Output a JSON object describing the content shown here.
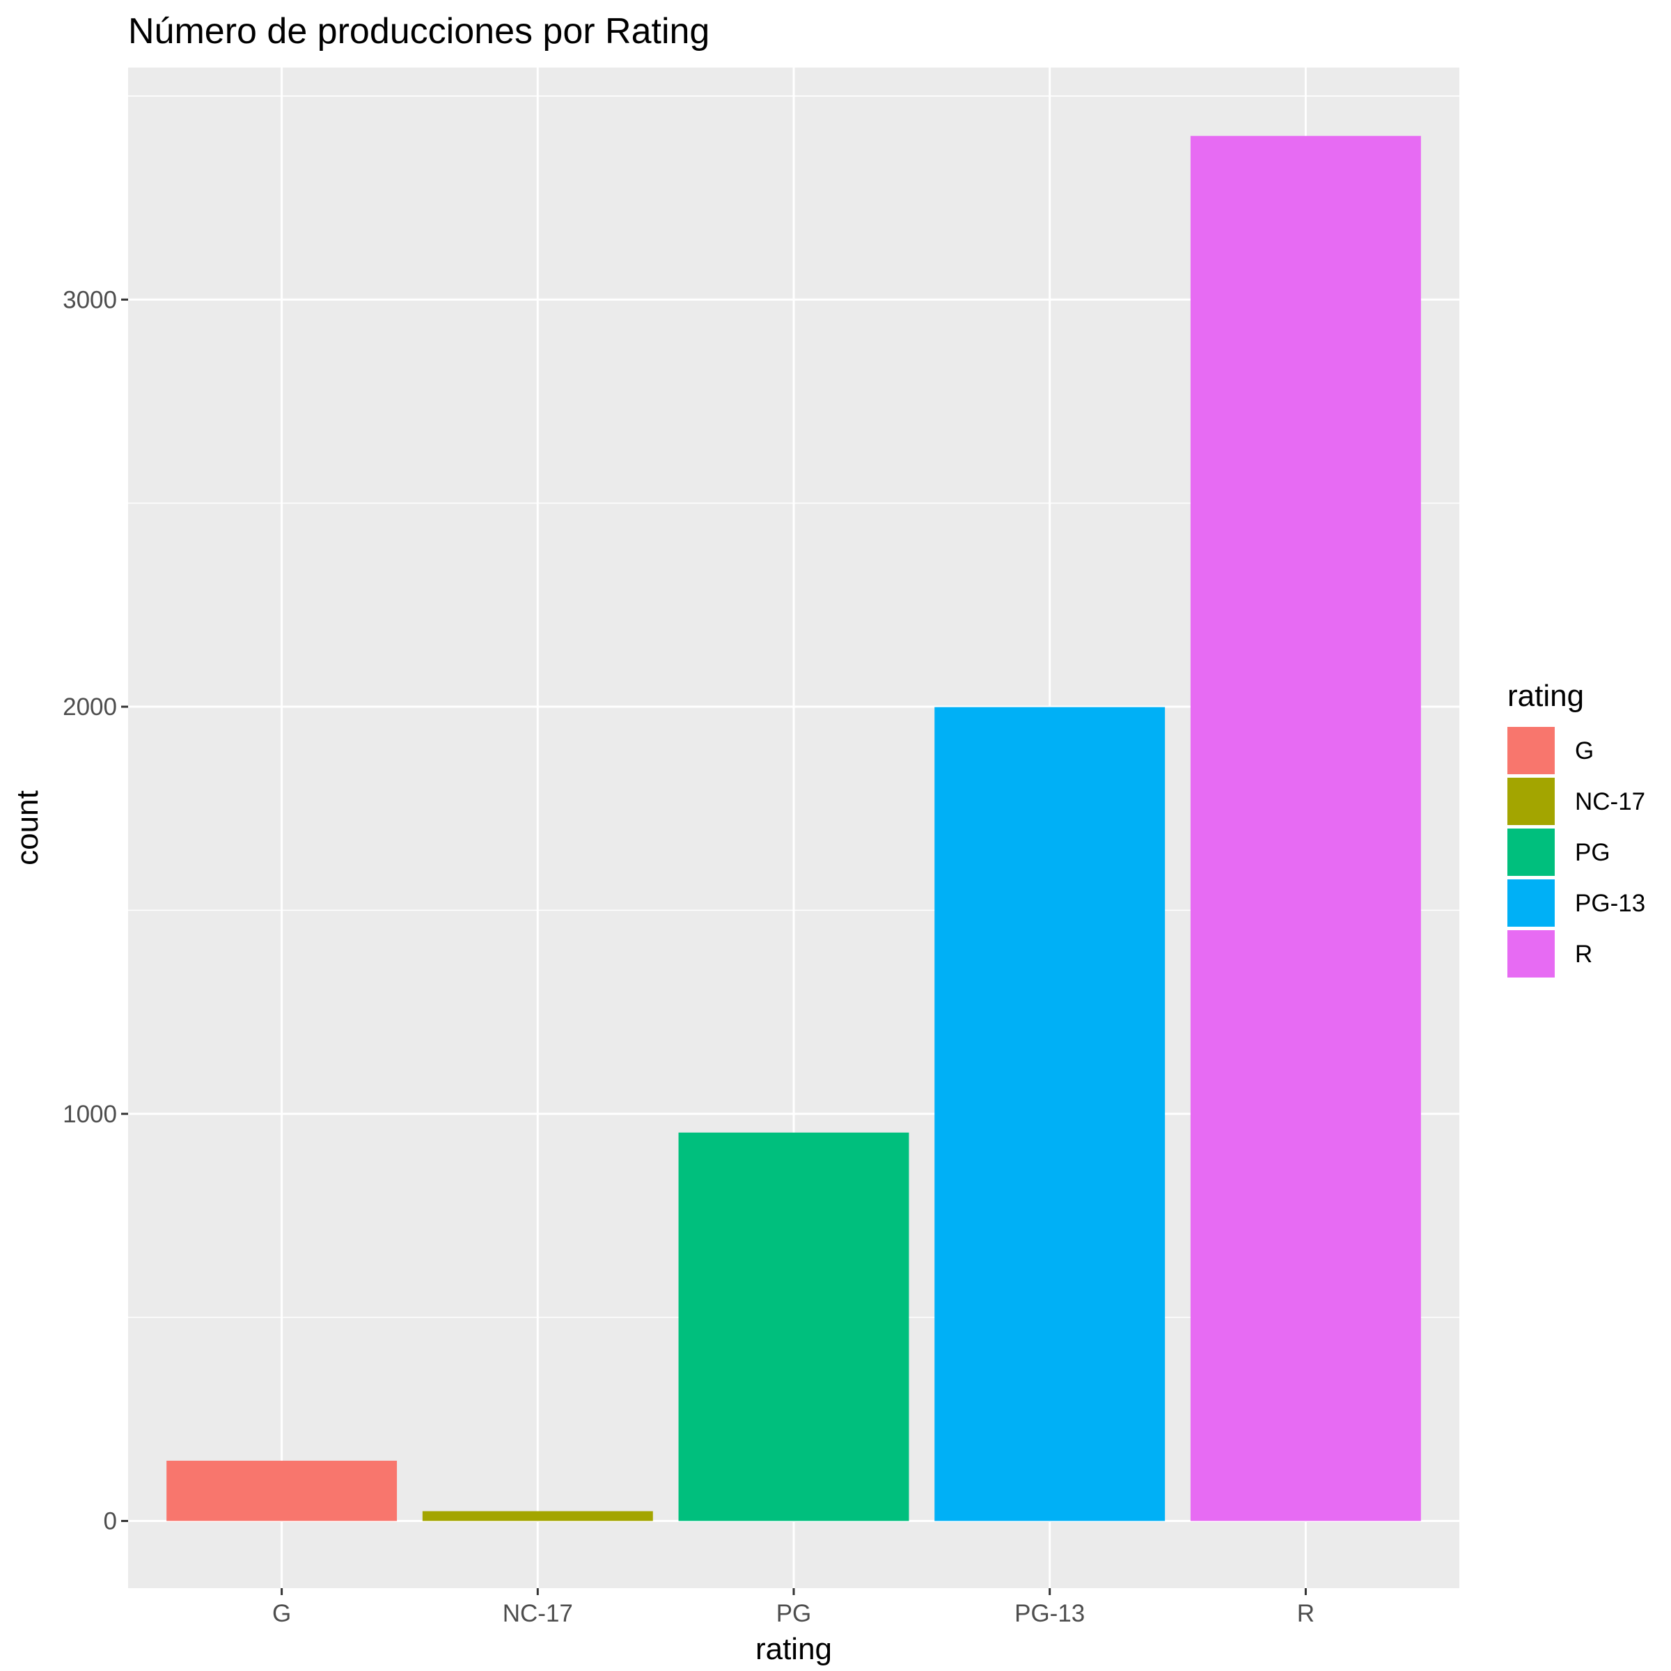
{
  "chart_data": {
    "type": "bar",
    "title": "Número de producciones por Rating",
    "xlabel": "rating",
    "ylabel": "count",
    "categories": [
      "G",
      "NC-17",
      "PG",
      "PG-13",
      "R"
    ],
    "values": [
      148,
      24,
      954,
      1999,
      3402
    ],
    "colors": [
      "#F8766D",
      "#A3A500",
      "#00BF7D",
      "#00B0F6",
      "#E76BF3"
    ],
    "ylim": [
      -165,
      3570
    ],
    "yticks": [
      0,
      1000,
      2000,
      3000
    ],
    "grid": true,
    "legend": {
      "title": "rating",
      "position": "right",
      "entries": [
        "G",
        "NC-17",
        "PG",
        "PG-13",
        "R"
      ]
    }
  }
}
